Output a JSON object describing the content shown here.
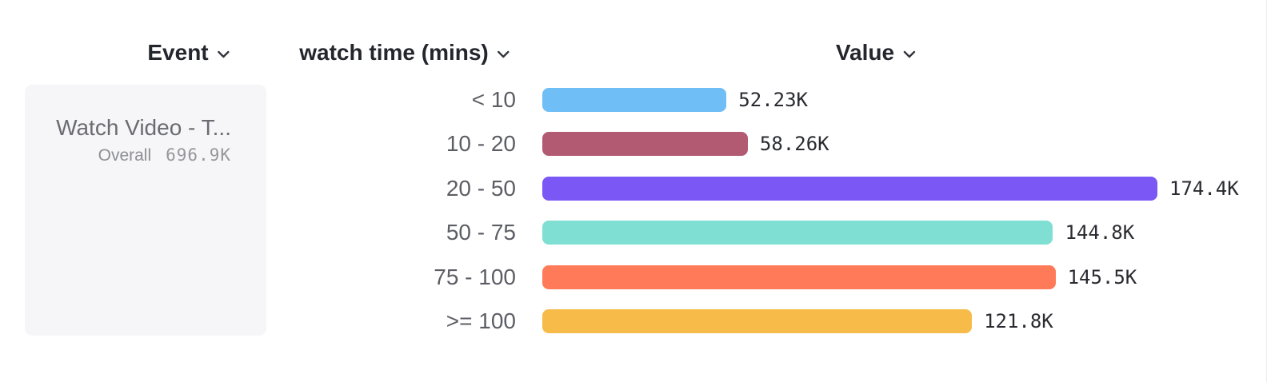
{
  "header": {
    "columns": [
      {
        "label": "Event"
      },
      {
        "label": "watch time (mins)"
      },
      {
        "label": "Value"
      }
    ]
  },
  "event_card": {
    "title": "Watch Video - T...",
    "overall_label": "Overall",
    "overall_value": "696.9K"
  },
  "chart_data": {
    "type": "bar",
    "orientation": "horizontal",
    "title": "",
    "xlabel": "Value",
    "ylabel": "watch time (mins)",
    "categories": [
      "< 10",
      "10 - 20",
      "20 - 50",
      "50 - 75",
      "75 - 100",
      ">= 100"
    ],
    "values": [
      52230,
      58260,
      174400,
      144800,
      145500,
      121800
    ],
    "value_labels": [
      "52.23K",
      "58.26K",
      "174.4K",
      "144.8K",
      "145.5K",
      "121.8K"
    ],
    "colors": [
      "#6fbef5",
      "#b25a72",
      "#7b57f6",
      "#7fdfd2",
      "#ff7a58",
      "#f6bb49"
    ],
    "total": {
      "label": "Overall",
      "value": 696900,
      "value_label": "696.9K"
    },
    "xlim": [
      0,
      174400
    ],
    "grid": false,
    "legend": false
  },
  "ui_colors": {
    "card_background": "#f6f6f8",
    "header_text": "#24262d",
    "category_text": "#5d5e65",
    "value_text": "#2a2b31",
    "muted_text": "#8d8e94"
  }
}
